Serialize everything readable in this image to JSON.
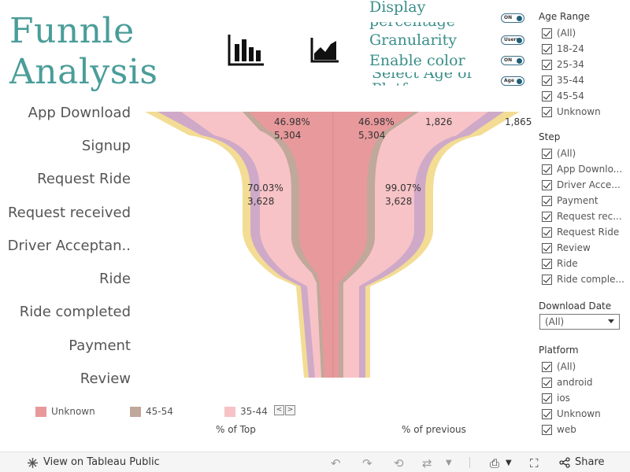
{
  "title_lines": [
    "Funnle",
    "Analysis"
  ],
  "toolbar": {
    "controls": [
      "Display",
      "percentage",
      "Granularity",
      "Enable color",
      "Select Age or",
      "Platform"
    ],
    "toggles": [
      "ON",
      "Users",
      "ON",
      "Age"
    ]
  },
  "funnel_steps": [
    "App Download",
    "Signup",
    "Request Ride",
    "Request received",
    "Driver Acceptan..",
    "Ride",
    "Ride completed",
    "Payment",
    "Review"
  ],
  "chart_data": {
    "type": "area",
    "title": "",
    "categories": [
      "App Download",
      "Signup",
      "Request Ride",
      "Request received",
      "Driver Acceptance",
      "Ride",
      "Ride completed",
      "Payment",
      "Review"
    ],
    "series": [
      {
        "name": "Unknown",
        "color": "#e8999c"
      },
      {
        "name": "45-54",
        "color": "#c0a89a"
      },
      {
        "name": "35-44",
        "color": "#f7c3c7"
      },
      {
        "name": "25-34",
        "color": "#cfa9c8"
      },
      {
        "name": "18-24",
        "color": "#f3dc94"
      }
    ],
    "annotations": {
      "left_top": [
        "46.98%",
        "5,304"
      ],
      "right_top": [
        "46.98%",
        "5,304"
      ],
      "right_outer_1": "1,826",
      "right_outer_2": "1,865",
      "left_mid": [
        "70.03%",
        "3,628"
      ],
      "right_mid": [
        "99.07%",
        "3,628"
      ]
    },
    "left_caption": "% of Top",
    "right_caption": "% of previous"
  },
  "legend": {
    "items": [
      {
        "label": "Unknown",
        "color": "#e8999c"
      },
      {
        "label": "45-54",
        "color": "#c0a89a"
      },
      {
        "label": "35-44",
        "color": "#f7c3c7"
      }
    ],
    "pager_prev": "<",
    "pager_next": ">"
  },
  "filters": {
    "age_range": {
      "title": "Age Range",
      "items": [
        "(All)",
        "18-24",
        "25-34",
        "35-44",
        "45-54",
        "Unknown"
      ]
    },
    "step": {
      "title": "Step",
      "items": [
        "(All)",
        "App Downlo...",
        "Driver Acce...",
        "Payment",
        "Request rec...",
        "Request Ride",
        "Review",
        "Ride",
        "Ride comple..."
      ]
    },
    "download_date": {
      "title": "Download Date",
      "value": "(All)"
    },
    "platform": {
      "title": "Platform",
      "items": [
        "(All)",
        "android",
        "ios",
        "Unknown",
        "web"
      ]
    }
  },
  "bottom": {
    "view_link": "View on Tableau Public",
    "share": "Share"
  }
}
